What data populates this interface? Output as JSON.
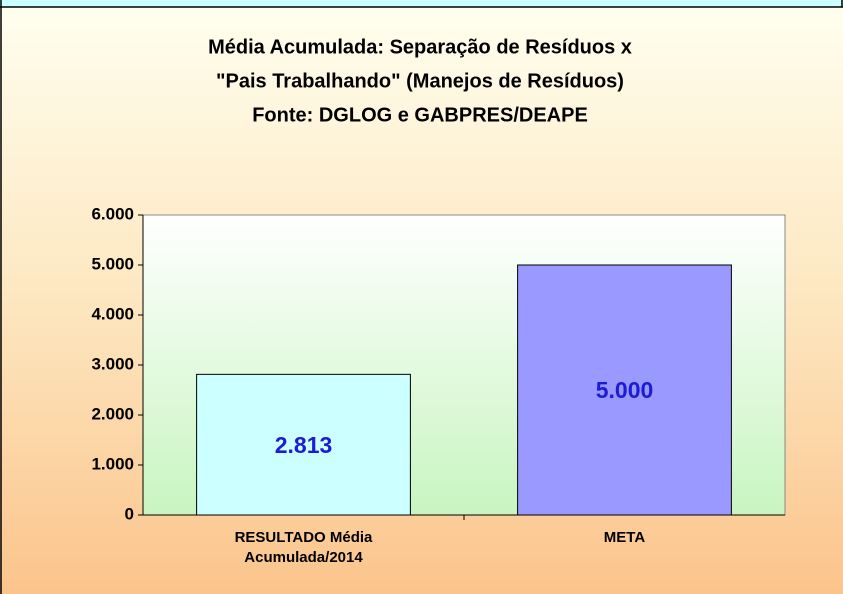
{
  "chart_data": {
    "type": "bar",
    "title": [
      "Média Acumulada: Separação de Resíduos x",
      "\"Pais Trabalhando\" (Manejos de Resíduos)",
      "Fonte: DGLOG e GABPRES/DEAPE"
    ],
    "categories": [
      "RESULTADO Média Acumulada/2014",
      "META"
    ],
    "values": [
      2813,
      5000
    ],
    "value_labels": [
      "2.813",
      "5.000"
    ],
    "colors": [
      "#ccffff",
      "#9999ff"
    ],
    "ylim": [
      0,
      6000
    ],
    "yticks": [
      0,
      {
        "value": 1000,
        "label": "1.000"
      },
      {
        "value": 2000,
        "label": "2.000"
      },
      {
        "value": 3000,
        "label": "3.000"
      },
      {
        "value": 4000,
        "label": "4.000"
      },
      {
        "value": 5000,
        "label": "5.000"
      },
      {
        "value": 6000,
        "label": "6.000"
      }
    ]
  }
}
